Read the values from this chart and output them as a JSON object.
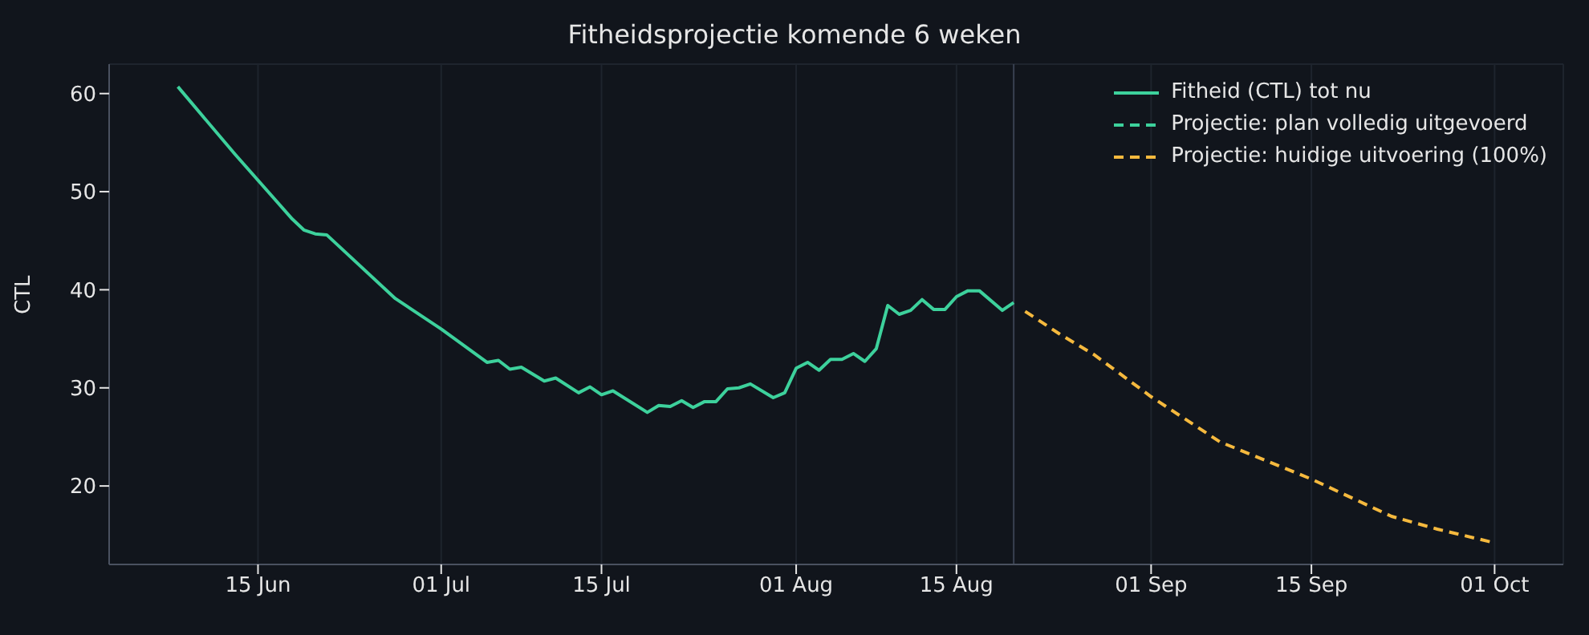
{
  "chart_data": {
    "type": "line",
    "title": "Fitheidsprojectie komende 6 weken",
    "ylabel": "CTL",
    "xlim": [
      "--06-02",
      "--10-07"
    ],
    "ylim": [
      12,
      63
    ],
    "xticks": [
      {
        "value": "--06-15",
        "label": "15 Jun"
      },
      {
        "value": "--07-01",
        "label": "01 Jul"
      },
      {
        "value": "--07-15",
        "label": "15 Jul"
      },
      {
        "value": "--08-01",
        "label": "01 Aug"
      },
      {
        "value": "--08-15",
        "label": "15 Aug"
      },
      {
        "value": "--09-01",
        "label": "01 Sep"
      },
      {
        "value": "--09-15",
        "label": "15 Sep"
      },
      {
        "value": "--10-01",
        "label": "01 Oct"
      }
    ],
    "yticks": [
      20,
      30,
      40,
      50,
      60
    ],
    "grid": true,
    "legend": "top right",
    "marker": "none",
    "ref_lines": [
      {
        "axis": "x",
        "value": "--08-20",
        "color": "#394150"
      }
    ],
    "series": [
      {
        "name": "Fitheid (CTL) tot nu",
        "color": "#3dd19c",
        "line_style": "solid",
        "x": [
          "--06-08",
          "--06-13",
          "--06-18",
          "--06-19",
          "--06-20",
          "--06-21",
          "--06-27",
          "--07-01",
          "--07-05",
          "--07-06",
          "--07-07",
          "--07-08",
          "--07-10",
          "--07-11",
          "--07-13",
          "--07-14",
          "--07-15",
          "--07-16",
          "--07-19",
          "--07-20",
          "--07-21",
          "--07-22",
          "--07-23",
          "--07-24",
          "--07-25",
          "--07-26",
          "--07-27",
          "--07-28",
          "--07-30",
          "--07-31",
          "--08-01",
          "--08-02",
          "--08-03",
          "--08-04",
          "--08-05",
          "--08-06",
          "--08-07",
          "--08-08",
          "--08-09",
          "--08-10",
          "--08-11",
          "--08-12",
          "--08-13",
          "--08-14",
          "--08-15",
          "--08-16",
          "--08-17",
          "--08-19",
          "--08-20"
        ],
        "values": [
          60.7,
          53.8,
          47.2,
          46.1,
          45.7,
          45.6,
          39.1,
          36.0,
          32.6,
          32.8,
          31.9,
          32.1,
          30.7,
          31.0,
          29.5,
          30.1,
          29.3,
          29.7,
          27.5,
          28.2,
          28.1,
          28.7,
          28.0,
          28.6,
          28.6,
          29.9,
          30.0,
          30.4,
          29.0,
          29.5,
          32.0,
          32.6,
          31.8,
          32.9,
          32.9,
          33.5,
          32.7,
          34.0,
          38.4,
          37.5,
          37.9,
          39.0,
          38.0,
          38.0,
          39.3,
          39.9,
          39.9,
          37.9,
          38.7
        ]
      },
      {
        "name": "Projectie: plan volledig uitgevoerd",
        "color": "#3dd19c",
        "line_style": "dashed"
      },
      {
        "name": "Projectie: huidige uitvoering (100%)",
        "color": "#f5b93e",
        "line_style": "dashed",
        "x": [
          "--08-21",
          "--08-24",
          "--08-27",
          "--09-01",
          "--09-04",
          "--09-07",
          "--09-11",
          "--09-15",
          "--09-22",
          "--09-26",
          "--10-01"
        ],
        "values": [
          37.8,
          35.5,
          33.4,
          29.1,
          26.8,
          24.5,
          22.6,
          20.7,
          16.9,
          15.6,
          14.2
        ]
      }
    ]
  }
}
